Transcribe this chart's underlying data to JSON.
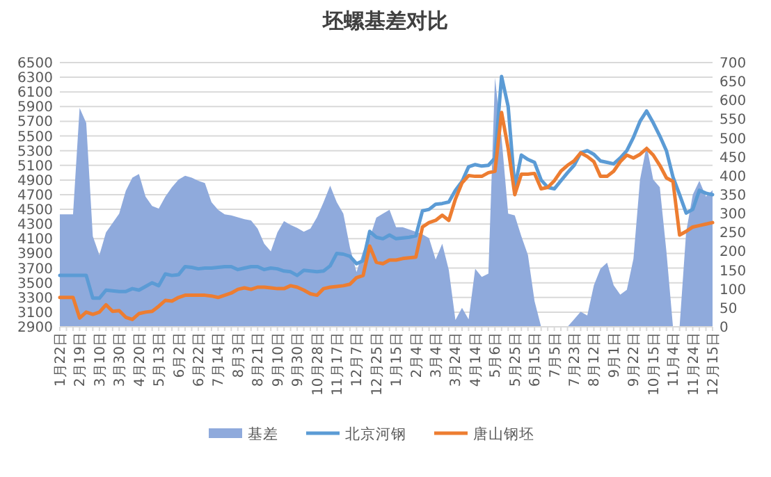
{
  "chart_data": {
    "type": "line",
    "title": "坯螺基差对比",
    "categories": [
      "1月22日",
      null,
      null,
      "2月19日",
      null,
      null,
      "3月10日",
      null,
      null,
      "3月30日",
      null,
      null,
      "4月20日",
      null,
      null,
      "5月13日",
      null,
      null,
      "6月2日",
      null,
      null,
      "6月22日",
      null,
      null,
      "7月14日",
      null,
      null,
      "8月3日",
      null,
      null,
      "8月21日",
      null,
      null,
      "9月10日",
      null,
      null,
      "9月30日",
      null,
      null,
      "10月28日",
      null,
      null,
      "11月17日",
      null,
      null,
      "12月7日",
      null,
      null,
      "12月25日",
      null,
      null,
      "1月15日",
      null,
      null,
      "2月4日",
      null,
      null,
      "3月4日",
      null,
      null,
      "3月24日",
      null,
      null,
      "4月14日",
      null,
      null,
      "5月6日",
      null,
      null,
      "5月25日",
      null,
      null,
      "6月15日",
      null,
      null,
      "7月5日",
      null,
      null,
      "7月23日",
      null,
      null,
      "8月12日",
      null,
      null,
      "9月1日",
      null,
      null,
      "9月22日",
      null,
      null,
      "10月15日",
      null,
      null,
      "11月4日",
      null,
      null,
      "11月24日",
      null,
      null,
      "12月15日"
    ],
    "series": [
      {
        "name": "基差",
        "type": "area",
        "axis": "y2",
        "color": "#8faadc",
        "values": [
          298,
          298,
          298,
          580,
          540,
          240,
          190,
          250,
          275,
          300,
          360,
          395,
          405,
          345,
          320,
          313,
          345,
          370,
          390,
          400,
          395,
          387,
          381,
          330,
          310,
          298,
          295,
          290,
          285,
          282,
          260,
          220,
          200,
          250,
          280,
          270,
          262,
          252,
          260,
          290,
          330,
          374,
          330,
          300,
          210,
          145,
          200,
          235,
          289,
          300,
          310,
          264,
          264,
          258,
          252,
          245,
          235,
          178,
          220,
          150,
          18,
          50,
          20,
          154,
          132,
          141,
          660,
          500,
          300,
          295,
          240,
          190,
          68,
          0,
          0,
          0,
          0,
          0,
          20,
          40,
          30,
          110,
          154,
          170,
          110,
          85,
          98,
          180,
          390,
          480,
          390,
          370,
          200,
          0,
          0,
          252,
          350,
          387,
          345,
          362
        ]
      },
      {
        "name": "北京河钢",
        "color": "#5b9bd5",
        "values": [
          3600,
          3600,
          3600,
          3600,
          3600,
          3290,
          3290,
          3400,
          3390,
          3380,
          3380,
          3420,
          3400,
          3450,
          3500,
          3460,
          3620,
          3600,
          3610,
          3720,
          3710,
          3690,
          3700,
          3700,
          3710,
          3720,
          3720,
          3680,
          3700,
          3720,
          3720,
          3680,
          3700,
          3690,
          3660,
          3650,
          3600,
          3670,
          3660,
          3650,
          3660,
          3730,
          3900,
          3890,
          3860,
          3760,
          3800,
          4200,
          4120,
          4100,
          4150,
          4100,
          4110,
          4120,
          4140,
          4480,
          4500,
          4570,
          4580,
          4600,
          4760,
          4880,
          5080,
          5110,
          5090,
          5100,
          5200,
          6310,
          5900,
          4800,
          5240,
          5180,
          5140,
          4900,
          4800,
          4780,
          4890,
          5000,
          5100,
          5270,
          5300,
          5250,
          5160,
          5140,
          5120,
          5200,
          5300,
          5480,
          5700,
          5840,
          5680,
          5500,
          5300,
          4940,
          4700,
          4450,
          4500,
          4760,
          4720,
          4700
        ]
      },
      {
        "name": "唐山钢坯",
        "color": "#ed7d31",
        "values": [
          3300,
          3300,
          3300,
          3020,
          3100,
          3070,
          3100,
          3200,
          3110,
          3120,
          3030,
          3000,
          3080,
          3100,
          3110,
          3180,
          3260,
          3250,
          3300,
          3330,
          3330,
          3330,
          3330,
          3320,
          3300,
          3330,
          3360,
          3410,
          3430,
          3410,
          3440,
          3440,
          3430,
          3420,
          3420,
          3460,
          3440,
          3400,
          3350,
          3330,
          3420,
          3440,
          3450,
          3460,
          3480,
          3570,
          3600,
          4000,
          3780,
          3760,
          3810,
          3810,
          3830,
          3840,
          3850,
          4260,
          4320,
          4350,
          4420,
          4350,
          4640,
          4860,
          4960,
          4950,
          4950,
          5000,
          5020,
          5820,
          5330,
          4700,
          4980,
          4980,
          4990,
          4780,
          4800,
          4890,
          5020,
          5100,
          5160,
          5270,
          5220,
          5150,
          4950,
          4950,
          5020,
          5150,
          5240,
          5200,
          5250,
          5330,
          5240,
          5100,
          4930,
          4880,
          4150,
          4200,
          4260,
          4280,
          4300,
          4320
        ]
      }
    ],
    "ylim": [
      2900,
      6500
    ],
    "yticks": [
      2900,
      3100,
      3300,
      3500,
      3700,
      3900,
      4100,
      4300,
      4500,
      4700,
      4900,
      5100,
      5300,
      5500,
      5700,
      5900,
      6100,
      6300,
      6500
    ],
    "y2lim": [
      0,
      700
    ],
    "y2ticks": [
      0,
      50,
      100,
      150,
      200,
      250,
      300,
      350,
      400,
      450,
      500,
      550,
      600,
      650,
      700
    ],
    "grid": "y",
    "legend": "bottom"
  }
}
